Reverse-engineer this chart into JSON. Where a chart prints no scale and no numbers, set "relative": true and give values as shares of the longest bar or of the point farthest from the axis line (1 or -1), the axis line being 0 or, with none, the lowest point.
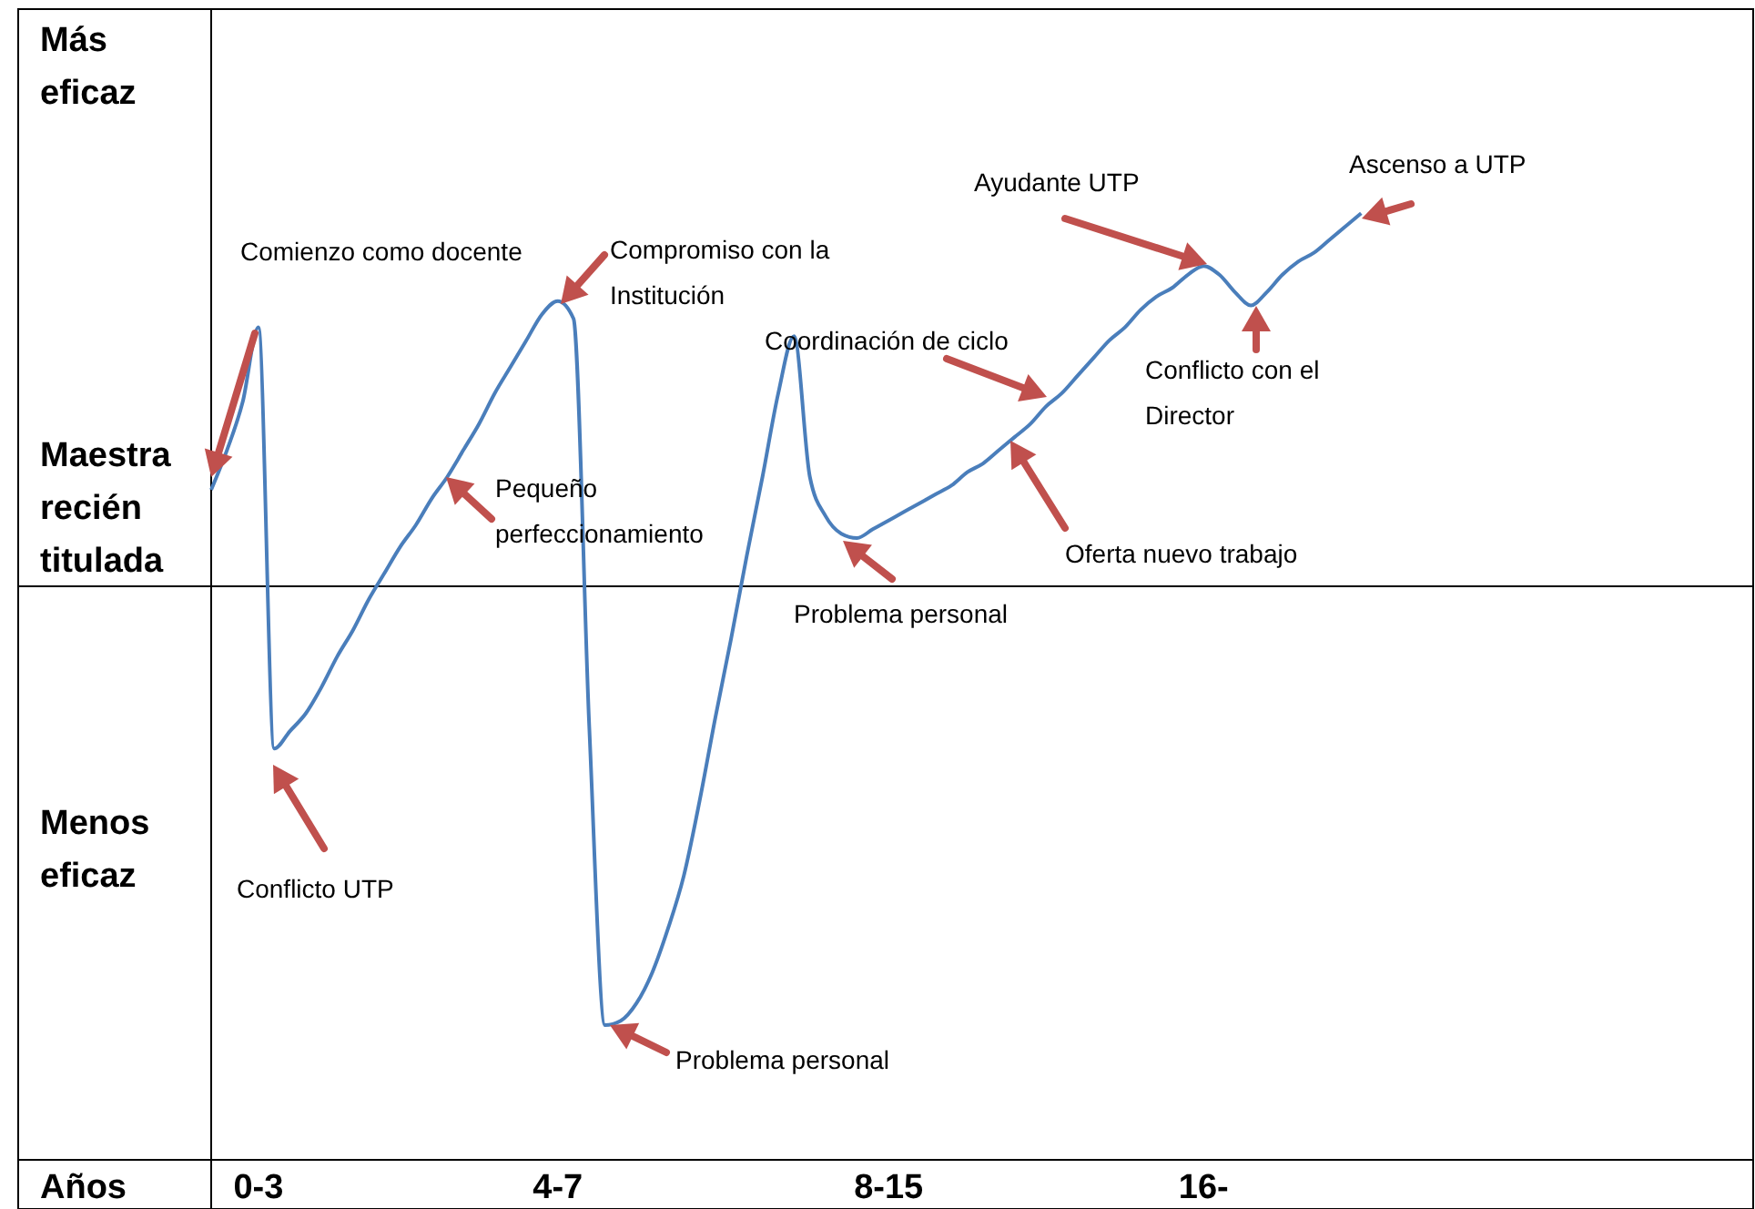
{
  "chart_data": {
    "type": "line",
    "relative": true,
    "xlabel": "Años",
    "color": "#4a7ebb",
    "categories": [
      null,
      null,
      null,
      "0-3",
      null,
      null,
      null,
      null,
      null,
      null,
      null,
      null,
      null,
      null,
      null,
      null,
      null,
      null,
      null,
      null,
      null,
      null,
      "4-7",
      null,
      null,
      null,
      null,
      null,
      null,
      null,
      null,
      null,
      null,
      null,
      null,
      null,
      null,
      null,
      null,
      null,
      null,
      null,
      null,
      "8-15",
      null,
      null,
      null,
      null,
      null,
      null,
      null,
      null,
      null,
      null,
      null,
      null,
      null,
      null,
      null,
      null,
      null,
      null,
      null,
      "16-",
      null,
      null,
      null,
      null,
      null,
      null,
      null,
      null,
      null,
      null,
      null,
      null,
      null,
      null,
      null,
      null,
      null,
      null,
      null,
      null,
      null,
      null,
      null,
      null,
      null,
      null,
      null,
      null,
      null,
      null,
      null,
      null,
      null,
      null,
      null
    ],
    "values": [
      0.22,
      0.31,
      0.42,
      0.59,
      -0.37,
      -0.33,
      -0.29,
      -0.23,
      -0.16,
      -0.1,
      -0.03,
      0.03,
      0.09,
      0.14,
      0.2,
      0.25,
      0.31,
      0.37,
      0.44,
      0.5,
      0.56,
      0.62,
      0.65,
      0.61,
      -0.32,
      -1,
      -0.99,
      -0.95,
      -0.88,
      -0.78,
      -0.66,
      -0.49,
      -0.3,
      -0.12,
      0.07,
      0.25,
      0.44,
      0.57,
      0.25,
      0.16,
      0.12,
      0.11,
      0.13,
      0.15,
      0.17,
      0.19,
      0.21,
      0.23,
      0.26,
      0.28,
      0.31,
      0.34,
      0.37,
      0.41,
      0.44,
      0.48,
      0.52,
      0.56,
      0.59,
      0.63,
      0.66,
      0.68,
      0.71,
      0.73,
      0.71,
      0.67,
      0.64,
      0.67,
      0.71,
      0.74,
      0.76,
      0.79,
      0.82,
      0.85,
      null,
      null,
      null,
      null,
      null,
      null,
      null,
      null,
      null,
      null,
      null,
      null,
      null,
      null,
      null,
      null,
      null,
      null,
      null,
      null,
      null,
      null,
      null,
      null,
      null
    ],
    "annotations": [
      "Comienzo como docente",
      "Compromiso con la\nInstitución",
      "Coordinación de ciclo",
      "Ayudante UTP",
      "Ascenso a UTP",
      "Pequeño\nperfeccionamiento",
      "Conflicto con el\nDirector",
      "Oferta nuevo trabajo",
      "Problema personal",
      "Conflicto UTP",
      "Problema personal",
      "Más\neficaz",
      "Maestra\nrecién\ntitulada",
      "Menos\neficaz"
    ]
  }
}
